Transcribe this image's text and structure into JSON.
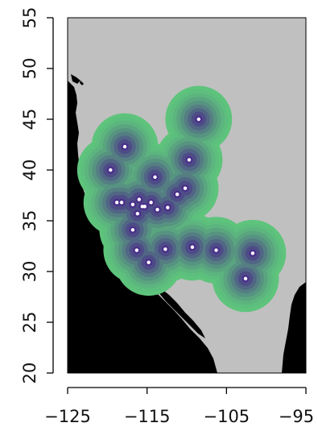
{
  "map": {
    "x_axis": {
      "range": [
        -125,
        -95
      ],
      "ticks": [
        -125,
        -115,
        -105,
        -95
      ],
      "tick_labels": [
        "−125",
        "−115",
        "−105",
        "−95"
      ]
    },
    "y_axis": {
      "range": [
        20,
        55
      ],
      "ticks": [
        20,
        25,
        30,
        35,
        40,
        45,
        50,
        55
      ],
      "tick_labels": [
        "20",
        "25",
        "30",
        "35",
        "40",
        "45",
        "50",
        "55"
      ]
    },
    "colors": {
      "land": "#c0c0c0",
      "ocean": "#000000",
      "density_outer": "#5ec47c",
      "density_inner": "#4a2f8a",
      "points": "#ffffff"
    },
    "density_contours": 9,
    "density_radius_deg": 4.2,
    "points": [
      [
        -108.5,
        45.0
      ],
      [
        -117.8,
        42.3
      ],
      [
        -119.6,
        40.0
      ],
      [
        -114.0,
        39.3
      ],
      [
        -109.7,
        41.0
      ],
      [
        -110.2,
        38.2
      ],
      [
        -111.2,
        37.6
      ],
      [
        -112.4,
        36.3
      ],
      [
        -113.7,
        36.1
      ],
      [
        -114.5,
        36.8
      ],
      [
        -115.6,
        36.4
      ],
      [
        -116.0,
        37.1
      ],
      [
        -116.8,
        36.6
      ],
      [
        -118.2,
        36.8
      ],
      [
        -118.8,
        36.8
      ],
      [
        -116.2,
        35.7
      ],
      [
        -116.8,
        34.1
      ],
      [
        -116.3,
        32.1
      ],
      [
        -112.7,
        32.2
      ],
      [
        -114.8,
        30.9
      ],
      [
        -109.3,
        32.4
      ],
      [
        -106.3,
        32.1
      ],
      [
        -101.7,
        31.8
      ],
      [
        -102.6,
        29.3
      ],
      [
        -115.3,
        36.4
      ]
    ]
  }
}
